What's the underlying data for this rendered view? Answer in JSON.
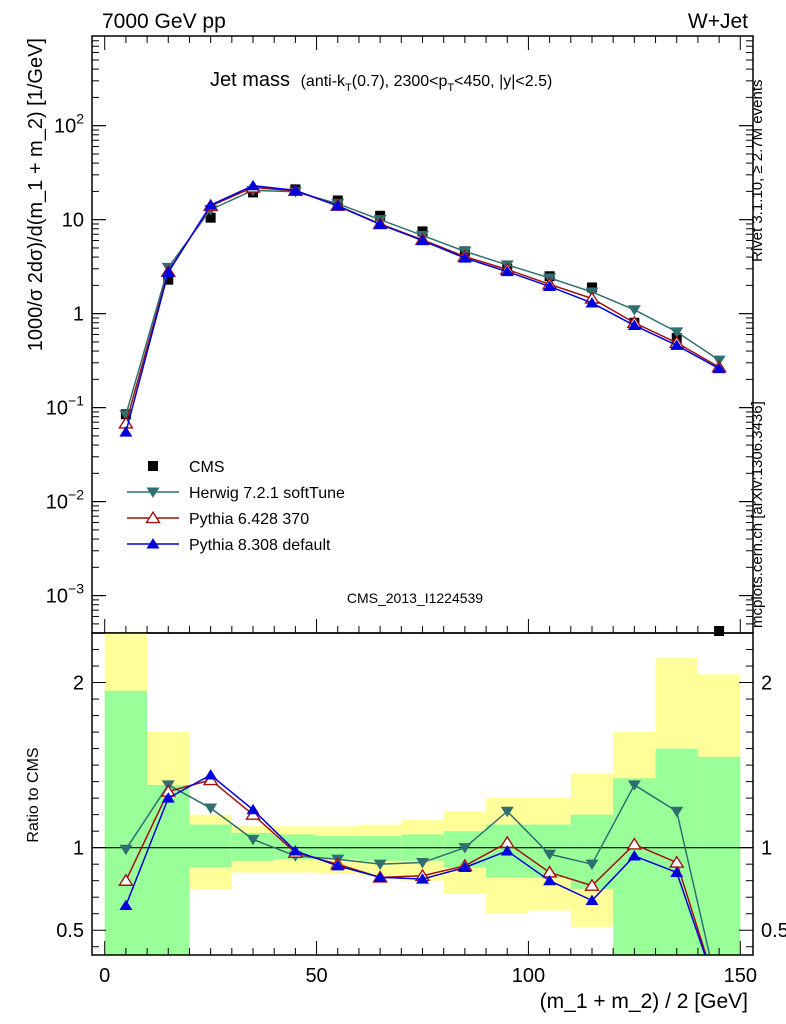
{
  "header": {
    "left": "7000 GeV pp",
    "right": "W+Jet"
  },
  "plot_title": {
    "main": "Jet mass",
    "detail": "(anti-kT(0.7), 2300<pT<450, |y|<2.5)"
  },
  "side_labels": {
    "rivet": "Rivet 3.1.10, ≥ 2.7M events",
    "mcplots": "mcplots.cern.ch [arXiv:1306.3436]"
  },
  "watermark": "CMS_2013_I1224539",
  "colors": {
    "cms": "#000000",
    "herwig": "#2f6f6f",
    "pythia6": "#a01010",
    "pythia8": "#0000dd",
    "band_inner": "#99ff99",
    "band_outer": "#ffff99"
  },
  "chart_data": [
    {
      "type": "line",
      "name": "main",
      "ylabel": "1000/σ 2dσ)/d(m_1 + m_2) [1/GeV]",
      "yscale": "log",
      "ylim": [
        0.0004,
        900
      ],
      "xlim": [
        -3,
        153
      ],
      "y_ticks": [
        "10^-3",
        "10^-2",
        "10^-1",
        "1",
        "10",
        "10^2"
      ],
      "legend": {
        "placement": "bottom-left"
      },
      "x": [
        5,
        15,
        25,
        35,
        45,
        55,
        65,
        75,
        85,
        95,
        105,
        115,
        125,
        135,
        145
      ],
      "series": [
        {
          "name": "CMS",
          "marker": "square",
          "values": [
            0.085,
            2.3,
            10.5,
            19.5,
            21,
            16,
            11,
            7.5,
            4.6,
            3.0,
            2.5,
            1.9,
            0.8,
            0.55,
            0.00038
          ]
        },
        {
          "name": "Herwig 7.2.1 softTune",
          "marker": "triangle-down",
          "values": [
            0.084,
            3.1,
            12.8,
            20.5,
            19.8,
            14.8,
            10.0,
            6.8,
            4.6,
            3.3,
            2.4,
            1.7,
            1.1,
            0.64,
            0.32
          ]
        },
        {
          "name": "Pythia 6.428 370",
          "marker": "triangle-up-open",
          "values": [
            0.068,
            2.8,
            14.0,
            22.0,
            20.3,
            14.1,
            9.0,
            6.1,
            4.05,
            2.95,
            2.05,
            1.45,
            0.8,
            0.49,
            0.27
          ]
        },
        {
          "name": "Pythia 8.308 default",
          "marker": "triangle-up",
          "values": [
            0.055,
            2.75,
            14.3,
            23.0,
            20.5,
            14.0,
            8.9,
            6.0,
            3.9,
            2.8,
            1.95,
            1.3,
            0.75,
            0.46,
            0.26
          ]
        }
      ]
    },
    {
      "type": "line",
      "name": "ratio",
      "ylabel": "Ratio to CMS",
      "xlabel": "(m_1 + m_2) / 2 [GeV]",
      "ylim": [
        0.35,
        2.3
      ],
      "xlim": [
        -3,
        153
      ],
      "y_ticks": [
        "0.5",
        "1",
        "2"
      ],
      "x_ticks": [
        "0",
        "50",
        "100",
        "150"
      ],
      "bands": {
        "edges": [
          0,
          10,
          20,
          30,
          40,
          50,
          60,
          70,
          80,
          90,
          100,
          110,
          120,
          130,
          140,
          150
        ],
        "inner_low": [
          0.35,
          0.35,
          0.88,
          0.92,
          0.93,
          0.93,
          0.92,
          0.92,
          0.88,
          0.82,
          0.82,
          0.75,
          0.35,
          0.35,
          0.35
        ],
        "inner_high": [
          1.95,
          1.38,
          1.14,
          1.09,
          1.08,
          1.07,
          1.07,
          1.08,
          1.1,
          1.14,
          1.14,
          1.2,
          1.42,
          1.6,
          1.55
        ],
        "outer_low": [
          0.35,
          0.7,
          0.75,
          0.85,
          0.85,
          0.84,
          0.83,
          0.8,
          0.72,
          0.6,
          0.62,
          0.52,
          0.35,
          0.35,
          0.45
        ],
        "outer_high": [
          2.3,
          1.7,
          1.2,
          1.13,
          1.13,
          1.13,
          1.14,
          1.17,
          1.22,
          1.3,
          1.3,
          1.45,
          1.7,
          2.15,
          2.05
        ]
      },
      "series": [
        {
          "name": "Herwig 7.2.1 softTune",
          "values": [
            0.99,
            1.38,
            1.24,
            1.05,
            0.95,
            0.93,
            0.9,
            0.91,
            1.0,
            1.22,
            0.96,
            0.9,
            1.38,
            1.22,
            0.1
          ]
        },
        {
          "name": "Pythia 6.428 370",
          "values": [
            0.8,
            1.34,
            1.41,
            1.2,
            0.97,
            0.9,
            0.82,
            0.83,
            0.89,
            1.03,
            0.85,
            0.77,
            1.02,
            0.91,
            0.1
          ]
        },
        {
          "name": "Pythia 8.308 default",
          "values": [
            0.65,
            1.3,
            1.44,
            1.23,
            0.98,
            0.89,
            0.82,
            0.81,
            0.88,
            0.98,
            0.8,
            0.68,
            0.95,
            0.85,
            0.1
          ]
        }
      ]
    }
  ]
}
